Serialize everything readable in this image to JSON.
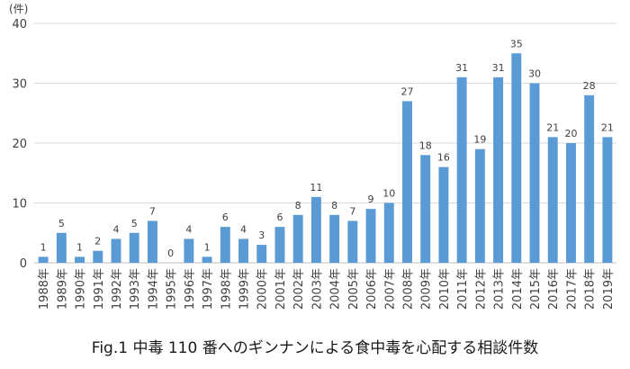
{
  "chart_data": {
    "type": "bar",
    "title": "Fig.1 中毒 110 番へのギンナンによる食中毒を心配する相談件数",
    "ylabel": "(件)",
    "xlabel": "",
    "ylim": [
      0,
      40
    ],
    "yticks": [
      0,
      10,
      20,
      30,
      40
    ],
    "grid": true,
    "bar_color": "#5b9bd5",
    "categories": [
      "1988年",
      "1989年",
      "1990年",
      "1991年",
      "1992年",
      "1993年",
      "1994年",
      "1995年",
      "1996年",
      "1997年",
      "1998年",
      "1999年",
      "2000年",
      "2001年",
      "2002年",
      "2003年",
      "2004年",
      "2005年",
      "2006年",
      "2007年",
      "2008年",
      "2009年",
      "2010年",
      "2011年",
      "2012年",
      "2013年",
      "2014年",
      "2015年",
      "2016年",
      "2017年",
      "2018年",
      "2019年"
    ],
    "values": [
      1,
      5,
      1,
      2,
      4,
      5,
      7,
      0,
      4,
      1,
      6,
      4,
      3,
      6,
      8,
      11,
      8,
      7,
      9,
      10,
      27,
      18,
      16,
      31,
      19,
      31,
      35,
      30,
      21,
      20,
      28,
      21
    ]
  }
}
